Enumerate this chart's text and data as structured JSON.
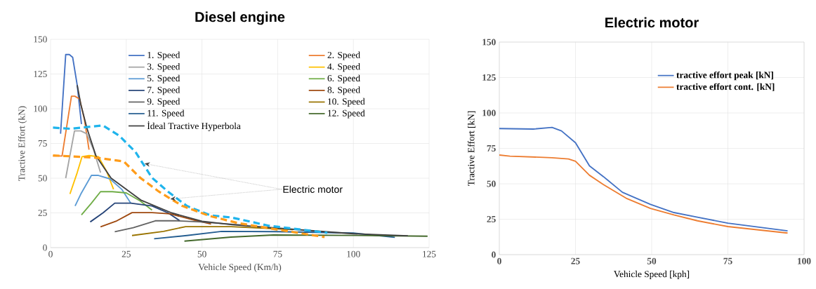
{
  "chart_data": [
    {
      "type": "line",
      "title": "Diesel engine",
      "xlabel": "Vehicle Speed (Km/h)",
      "ylabel": "Tractive Effort (kN)",
      "xlim": [
        0,
        125
      ],
      "xticks": [
        0,
        25,
        50,
        75,
        100,
        125
      ],
      "ylim": [
        0,
        150
      ],
      "yticks": [
        0,
        25,
        50,
        75,
        100,
        125,
        150
      ],
      "grid": true,
      "legend": "top",
      "annotations": [
        {
          "text": "Electric motor",
          "x": 31,
          "y": 60.5
        }
      ],
      "series": [
        {
          "name": "1. Speed",
          "color": "#4472c4",
          "x": [
            3.3,
            5,
            6.2,
            7.3,
            8.8,
            10.2
          ],
          "values": [
            82,
            139,
            139,
            137,
            117,
            89
          ]
        },
        {
          "name": "2. Speed",
          "color": "#ed7d31",
          "x": [
            0.8,
            3.8,
            6.9,
            8,
            9.6,
            11.2,
            12.7
          ],
          "values": [
            66,
            66,
            109,
            109,
            107,
            92,
            70.5
          ]
        },
        {
          "name": "3. Speed",
          "color": "#a5a5a5",
          "x": [
            5,
            7.9,
            10,
            11.9,
            14.2,
            16.5
          ],
          "values": [
            50,
            84,
            84,
            82,
            70.5,
            54
          ]
        },
        {
          "name": "4. Speed",
          "color": "#ffc000",
          "x": [
            6.4,
            8.8,
            10.4,
            12.7,
            15.8,
            18.5,
            20.8
          ],
          "values": [
            38.6,
            54,
            65.5,
            66.3,
            65.5,
            55,
            42
          ]
        },
        {
          "name": "5. Speed",
          "color": "#5b9bd5",
          "x": [
            8.1,
            10,
            13.5,
            15.8,
            19.6,
            23.5,
            26.5
          ],
          "values": [
            30,
            38.6,
            52,
            52,
            49.5,
            42,
            32
          ]
        },
        {
          "name": "6. Speed",
          "color": "#70ad47",
          "x": [
            10.2,
            13.5,
            16.5,
            20.4,
            25,
            29.6,
            33.5
          ],
          "values": [
            23.5,
            32,
            40.3,
            40.3,
            39.4,
            33.6,
            27
          ]
        },
        {
          "name": "7. Speed",
          "color": "#264478",
          "x": [
            13.1,
            17.3,
            21.2,
            26.5,
            33.5,
            38.8,
            42.7
          ],
          "values": [
            18.5,
            25,
            32,
            32,
            30,
            25,
            19.3
          ]
        },
        {
          "name": "8. Speed",
          "color": "#9e480e",
          "x": [
            16.5,
            21.9,
            26.9,
            33.5,
            39.6,
            47,
            53
          ],
          "values": [
            15,
            19.3,
            25.2,
            25.2,
            24.3,
            20,
            17
          ]
        },
        {
          "name": "9. Speed",
          "color": "#636363",
          "x": [
            21.2,
            27.3,
            34.6,
            41.9,
            49.6,
            65
          ],
          "values": [
            11.4,
            14.3,
            19.3,
            19.3,
            18.5,
            16
          ]
        },
        {
          "name": "10. Speed",
          "color": "#997300",
          "x": [
            26.9,
            37.3,
            44.6,
            59.6,
            80
          ],
          "values": [
            8.7,
            11.7,
            15.1,
            15.1,
            13
          ]
        },
        {
          "name": "11. Speed",
          "color": "#255e91",
          "x": [
            34.2,
            45,
            56.5,
            75,
            100,
            113.7
          ],
          "values": [
            6.4,
            8.7,
            11.7,
            11.5,
            10.5,
            7.4
          ]
        },
        {
          "name": "12. Speed",
          "color": "#43682b",
          "x": [
            44.2,
            59.6,
            73.6,
            100,
            124.5
          ],
          "values": [
            4.7,
            7.6,
            9.1,
            8.8,
            8.2
          ]
        },
        {
          "name": "İdeal Tractive Hyperbola",
          "color": "#404040",
          "x": [
            8.8,
            10,
            12,
            15,
            20,
            25,
            30,
            40,
            50,
            60,
            75,
            100,
            118
          ],
          "values": [
            117,
            103,
            86,
            66,
            50,
            42,
            34,
            25,
            19,
            16.5,
            14,
            10,
            8.5
          ]
        },
        {
          "color": "#1fb4ec",
          "line_style": "dashed",
          "x": [
            0.8,
            6.5,
            17.3,
            22.7,
            28,
            33.5,
            38.8,
            45,
            52.7,
            59.7,
            72,
            91.4
          ],
          "values": [
            86.4,
            85.6,
            88,
            80.5,
            69,
            50.3,
            40.3,
            30,
            23.3,
            21.7,
            15.8,
            10.7
          ]
        },
        {
          "color": "#ff9c1a",
          "line_style": "dashed",
          "x": [
            0.8,
            8.8,
            15.8,
            24.2,
            29.6,
            35.8,
            43.5,
            52.7,
            62,
            76,
            90.5
          ],
          "values": [
            66.4,
            65.5,
            64.6,
            62,
            50.3,
            40.3,
            30,
            22.7,
            17.6,
            12.6,
            7.6
          ]
        }
      ]
    },
    {
      "type": "line",
      "title": "Electric motor",
      "xlabel": "Vehicle Speed [kph]",
      "ylabel": "Tractive Effort [kN]",
      "xlim": [
        0,
        100
      ],
      "xticks": [
        0,
        25,
        50,
        75,
        100
      ],
      "ylim": [
        0,
        150
      ],
      "yticks": [
        0,
        25,
        50,
        75,
        100,
        125,
        150
      ],
      "grid": true,
      "legend": "top right",
      "series": [
        {
          "name": "tractive effort peak [kN]",
          "color": "#4472c4",
          "x": [
            0,
            11.2,
            17.3,
            20.4,
            25,
            29.6,
            34.2,
            40.4,
            49.6,
            57.3,
            65,
            75,
            94.6
          ],
          "values": [
            89,
            88.6,
            89.8,
            87.3,
            79,
            62.6,
            55,
            44,
            35.5,
            29.7,
            26.4,
            22.2,
            16.8
          ]
        },
        {
          "name": "tractive effort cont. [kN]",
          "color": "#ed7d31",
          "x": [
            0,
            3.5,
            17.3,
            22.7,
            25,
            29.6,
            34.2,
            41.9,
            49.6,
            57.3,
            65,
            75,
            94.6
          ],
          "values": [
            70.3,
            69.5,
            68.4,
            67.5,
            65.9,
            56,
            49.4,
            39.5,
            32.6,
            28,
            23.9,
            19.8,
            15.2
          ]
        }
      ]
    }
  ]
}
